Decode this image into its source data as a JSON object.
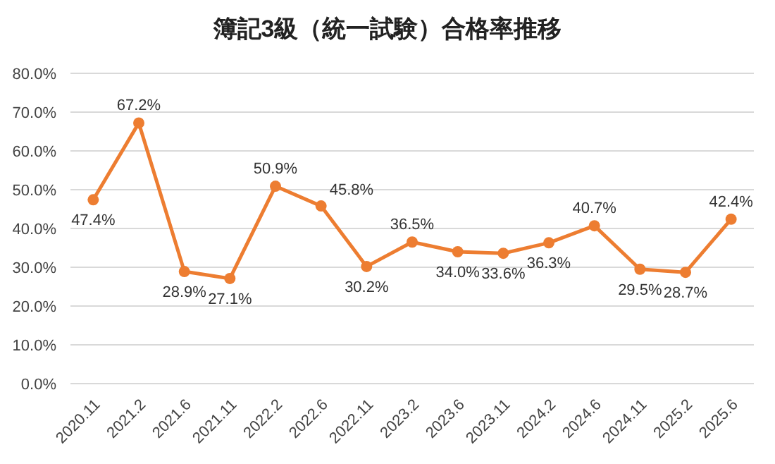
{
  "chart_data": {
    "type": "line",
    "title": "簿記3級（統一試験）合格率推移",
    "categories": [
      "2020.11",
      "2021.2",
      "2021.6",
      "2021.11",
      "2022.2",
      "2022.6",
      "2022.11",
      "2023.2",
      "2023.6",
      "2023.11",
      "2024.2",
      "2024.6",
      "2024.11",
      "2025.2",
      "2025.6"
    ],
    "series": [
      {
        "color": "#ed7d31",
        "values": [
          47.4,
          67.2,
          28.9,
          27.1,
          50.9,
          45.8,
          30.2,
          36.5,
          34.0,
          33.6,
          36.3,
          40.7,
          29.5,
          28.7,
          42.4
        ],
        "value_labels": [
          "47.4%",
          "67.2%",
          "28.9%",
          "27.1%",
          "50.9%",
          "45.8%",
          "30.2%",
          "36.5%",
          "34.0%",
          "33.6%",
          "36.3%",
          "40.7%",
          "29.5%",
          "28.7%",
          "42.4%"
        ]
      }
    ],
    "ylim": [
      0,
      80
    ],
    "yticks": [
      {
        "value": 0,
        "label": "0.0%"
      },
      {
        "value": 10,
        "label": "10.0%"
      },
      {
        "value": 20,
        "label": "20.0%"
      },
      {
        "value": 30,
        "label": "30.0%"
      },
      {
        "value": 40,
        "label": "40.0%"
      },
      {
        "value": 50,
        "label": "50.0%"
      },
      {
        "value": 60,
        "label": "60.0%"
      },
      {
        "value": 70,
        "label": "70.0%"
      },
      {
        "value": 80,
        "label": "80.0%"
      }
    ],
    "grid": "y",
    "marker": "circle",
    "line_style": "solid"
  }
}
